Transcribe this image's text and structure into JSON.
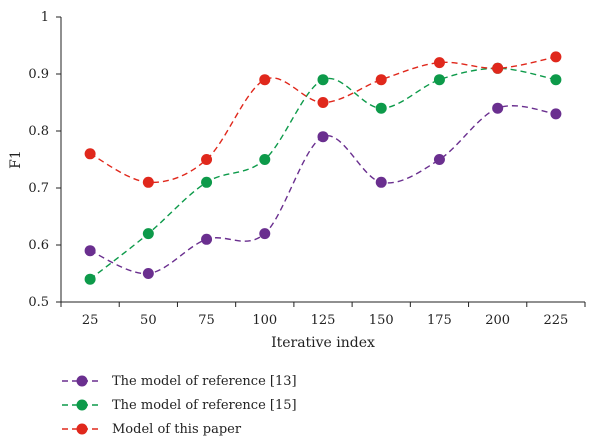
{
  "chart_data": {
    "type": "line",
    "categories": [
      "25",
      "50",
      "75",
      "100",
      "125",
      "150",
      "175",
      "200",
      "225"
    ],
    "xlabel": "Iterative index",
    "ylabel": "F1",
    "ylim": [
      0.5,
      1
    ],
    "yticks": [
      "0.5",
      "0.6",
      "0.7",
      "0.8",
      "0.9",
      "1"
    ],
    "grid": false,
    "legend_position": "bottom-left",
    "line_style": "dashed-smooth",
    "series": [
      {
        "name": "The model of reference [13]",
        "color": "#6a2f8f",
        "values": [
          0.59,
          0.55,
          0.61,
          0.62,
          0.79,
          0.71,
          0.75,
          0.84,
          0.83
        ]
      },
      {
        "name": "The model of reference [15]",
        "color": "#0d9a4a",
        "values": [
          0.54,
          0.62,
          0.71,
          0.75,
          0.89,
          0.84,
          0.89,
          0.91,
          0.89
        ]
      },
      {
        "name": "Model of this paper",
        "color": "#e0281c",
        "values": [
          0.76,
          0.71,
          0.75,
          0.89,
          0.85,
          0.89,
          0.92,
          0.91,
          0.93
        ]
      }
    ]
  }
}
